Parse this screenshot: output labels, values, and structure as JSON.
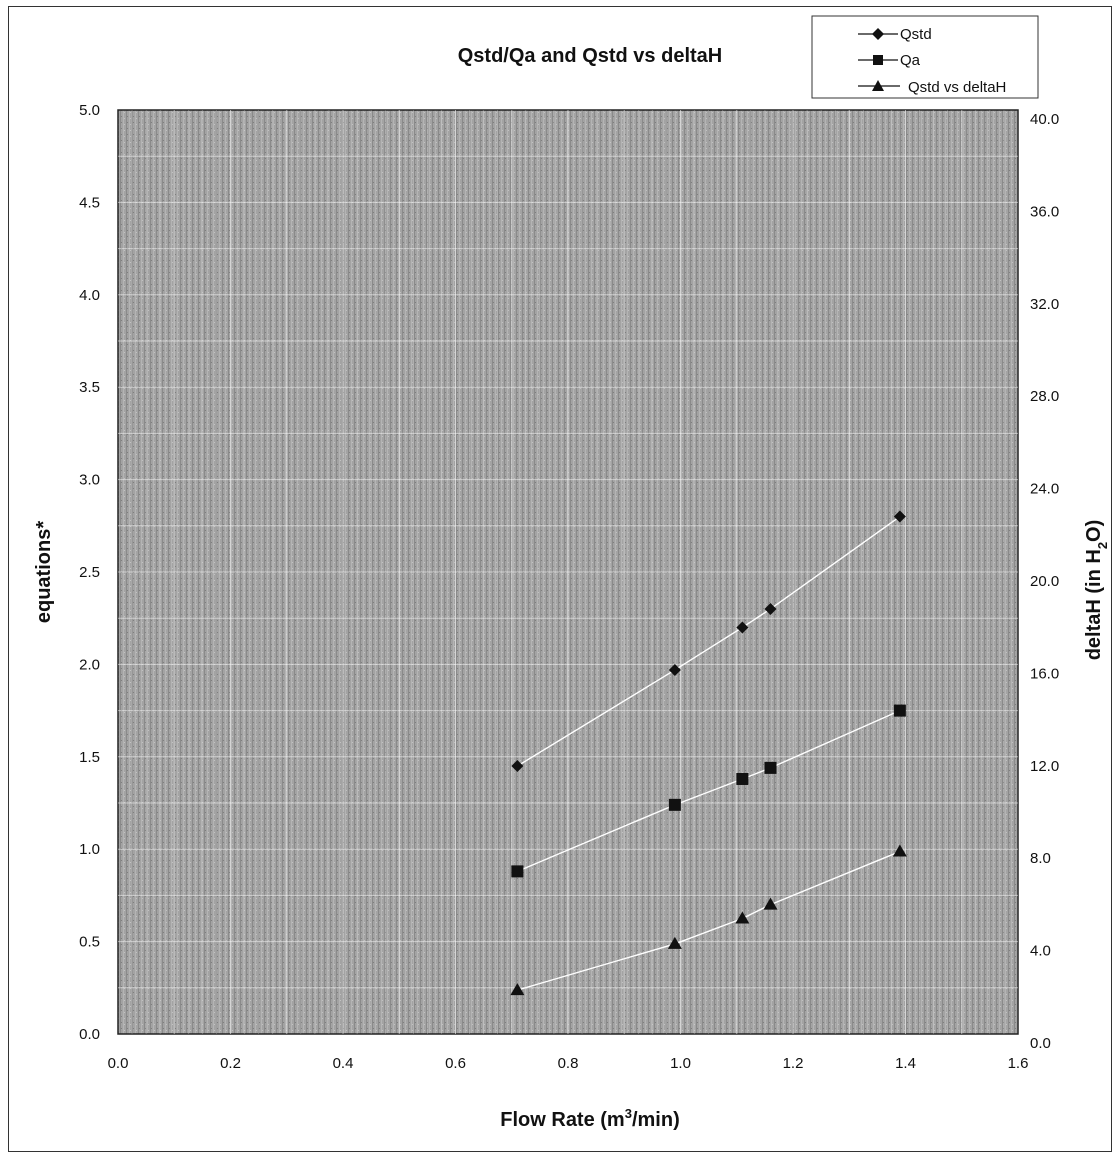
{
  "chart_data": {
    "type": "line",
    "title": "Qstd/Qa and Qstd vs deltaH",
    "xlabel": "Flow Rate (m³/min)",
    "xlabel_main": "Flow Rate (m",
    "xlabel_sup": "3",
    "xlabel_end": "/min)",
    "ylabel": "equations*",
    "y2label": "deltaH (in H₂O)",
    "y2label_main": "deltaH (in H",
    "y2label_sub": "2",
    "y2label_end": "O)",
    "xlim": [
      0.0,
      1.6
    ],
    "ylim": [
      0.0,
      5.0
    ],
    "y2lim": [
      0.0,
      40.0
    ],
    "x_ticks": [
      "0.0",
      "0.2",
      "0.4",
      "0.6",
      "0.8",
      "1.0",
      "1.2",
      "1.4",
      "1.6"
    ],
    "y_ticks": [
      "0.0",
      "0.5",
      "1.0",
      "1.5",
      "2.0",
      "2.5",
      "3.0",
      "3.5",
      "4.0",
      "4.5",
      "5.0"
    ],
    "y2_ticks": [
      "0.0",
      "4.0",
      "8.0",
      "12.0",
      "16.0",
      "20.0",
      "24.0",
      "28.0",
      "32.0",
      "36.0",
      "40.0"
    ],
    "grid": true,
    "legend_position": "top-right",
    "background_color": "#9a9a9a",
    "line_color": "#ffffff",
    "marker_color": "#111111",
    "series": [
      {
        "name": "Qstd",
        "marker": "diamond",
        "axis": "left",
        "x": [
          0.71,
          0.99,
          1.11,
          1.16,
          1.39
        ],
        "y": [
          1.45,
          1.97,
          2.2,
          2.3,
          2.8
        ]
      },
      {
        "name": "Qa",
        "marker": "square",
        "axis": "left",
        "x": [
          0.71,
          0.99,
          1.11,
          1.16,
          1.39
        ],
        "y": [
          0.88,
          1.24,
          1.38,
          1.44,
          1.75
        ]
      },
      {
        "name": "Qstd vs deltaH",
        "marker": "triangle",
        "axis": "right",
        "x": [
          0.71,
          0.99,
          1.11,
          1.16,
          1.39
        ],
        "y": [
          1.9,
          3.9,
          5.0,
          5.6,
          7.9
        ]
      }
    ]
  }
}
